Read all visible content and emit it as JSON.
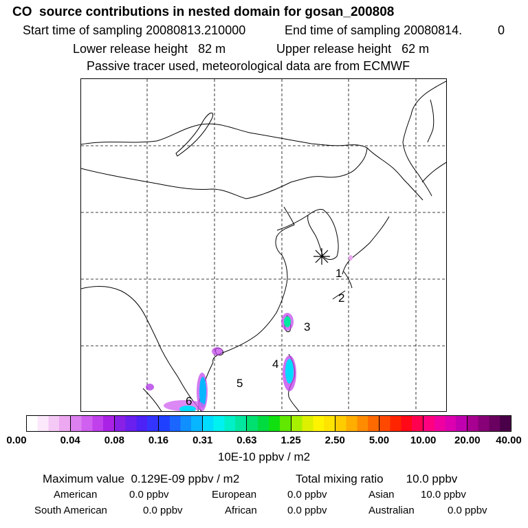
{
  "header": {
    "title": "CO  source contributions in nested domain for gosan_200808",
    "start_label": "Start time of sampling 20080813.210000",
    "end_label": "End time of sampling 20080814.",
    "end_value": "0",
    "lower_release": "Lower release height   82 m",
    "upper_release": "Upper release height   62 m",
    "tracer_note": "Passive tracer used, meteorological data are from ECMWF"
  },
  "map": {
    "receptor_marker": "receptor-star",
    "region_labels": [
      "1",
      "2",
      "3",
      "4",
      "5",
      "6"
    ],
    "land_color": "#ffffff",
    "coast_color": "#000000",
    "grid_style": "dashed"
  },
  "colorbar": {
    "tick_labels": [
      "0.00",
      "0.04",
      "0.08",
      "0.16",
      "0.31",
      "0.63",
      "1.25",
      "2.50",
      "5.00",
      "10.00",
      "20.00",
      "40.00"
    ],
    "unit": "10E-10 ppbv / m2",
    "colors": [
      [
        "#ffffff",
        "#fbe8fb",
        "#f4c9f6",
        "#eca8f0"
      ],
      [
        "#dd80f0",
        "#d060f0",
        "#c040ec",
        "#aa22e6"
      ],
      [
        "#8820e6",
        "#6a20ee",
        "#4c22f6",
        "#3434ff"
      ],
      [
        "#2040ff",
        "#1a66ff",
        "#1090ff",
        "#08b6ff"
      ],
      [
        "#00dcff",
        "#00f2f0",
        "#00f0c8",
        "#00e8a0"
      ],
      [
        "#00e070",
        "#00dc40",
        "#10e010",
        "#60e800"
      ],
      [
        "#a8f000",
        "#dcf000",
        "#fff400",
        "#ffe400"
      ],
      [
        "#ffcc00",
        "#ffae00",
        "#ff8c00",
        "#ff6a00"
      ],
      [
        "#ff4800",
        "#ff2400",
        "#ff0818",
        "#ff0050"
      ],
      [
        "#ff0080",
        "#f000a0",
        "#dc00b0",
        "#c000b0"
      ],
      [
        "#a80090",
        "#880078",
        "#6a0060",
        "#4a0048"
      ]
    ]
  },
  "footer": {
    "maximum_value": "Maximum value  0.129E-09 ppbv / m2",
    "total_mixing": "Total mixing ratio       10.0 ppbv",
    "american": "American",
    "american_val": "0.0 ppbv",
    "european": "European",
    "european_val": "0.0 ppbv",
    "asian": "Asian",
    "asian_val": "10.0 ppbv",
    "south_american": "South American",
    "south_american_val": "0.0 ppbv",
    "african": "African",
    "african_val": "0.0 ppbv",
    "australian": "Australian",
    "australian_val": "0.0 ppbv"
  }
}
